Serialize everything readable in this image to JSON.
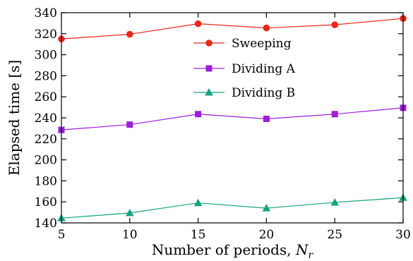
{
  "chart_data": {
    "type": "line",
    "title": "",
    "xlabel": "Number of periods, ",
    "xlabel_symbol": "N",
    "xlabel_subscript": "r",
    "ylabel": "Elapsed time [s]",
    "xlim": [
      5,
      30
    ],
    "ylim": [
      140,
      340
    ],
    "xticks": [
      "5",
      "10",
      "15",
      "20",
      "25",
      "30"
    ],
    "yticks": [
      "140",
      "160",
      "180",
      "200",
      "220",
      "240",
      "260",
      "280",
      "300",
      "320",
      "340"
    ],
    "grid": false,
    "legend_position": "top-center",
    "x": [
      5,
      10,
      15,
      20,
      25,
      30
    ],
    "series": [
      {
        "name": "Sweeping",
        "values": [
          315,
          319.5,
          329.5,
          325.5,
          328.5,
          334.5
        ],
        "color": "#e8281c",
        "marker": "circle"
      },
      {
        "name": "Dividing A",
        "values": [
          228.5,
          233.5,
          243.5,
          239,
          243.5,
          249.5
        ],
        "color": "#9a1fd6",
        "marker": "square"
      },
      {
        "name": "Dividing B",
        "values": [
          144.5,
          149.5,
          159,
          154,
          159.5,
          164
        ],
        "color": "#14a37f",
        "marker": "triangle"
      }
    ]
  }
}
